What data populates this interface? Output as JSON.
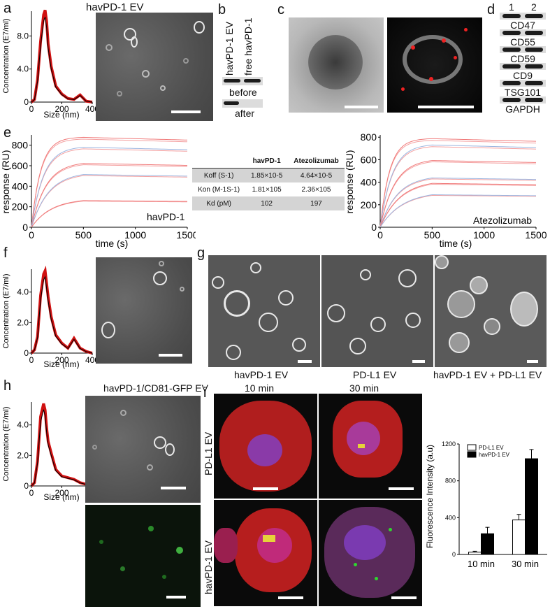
{
  "panels": {
    "a": {
      "letter": "a",
      "title": "havPD-1 EV"
    },
    "b": {
      "letter": "b",
      "lanes": [
        "havPD-1 EV",
        "free havPD-1"
      ],
      "rows": [
        "before",
        "after"
      ]
    },
    "c": {
      "letter": "c"
    },
    "d": {
      "letter": "d",
      "lanes": [
        "1",
        "2"
      ],
      "markers": [
        "CD47",
        "CD55",
        "CD59",
        "CD9",
        "TSG101",
        "GAPDH"
      ]
    },
    "e": {
      "letter": "e",
      "left_label": "havPD-1",
      "right_label": "Atezolizumab"
    },
    "f": {
      "letter": "f"
    },
    "g": {
      "letter": "g",
      "captions": [
        "havPD-1 EV",
        "PD-L1 EV",
        "havPD-1 EV + PD-L1 EV"
      ]
    },
    "h": {
      "letter": "h",
      "title": "havPD-1/CD81-GFP EV"
    },
    "i": {
      "letter": "i",
      "cols": [
        "10 min",
        "30 min"
      ],
      "rows": [
        "PD-L1 EV",
        "havPD-1 EV"
      ]
    }
  },
  "kinetics_table": {
    "headers": [
      "",
      "havPD-1",
      "Atezolizumab"
    ],
    "rows": [
      {
        "label": "Koff (S-1)",
        "a": "1.85×10-5",
        "b": "4.64×10-5"
      },
      {
        "label": "Kon (M-1S-1)",
        "a": "1.81×105",
        "b": "2.36×105"
      },
      {
        "label": "Kd (pM)",
        "a": "102",
        "b": "197"
      }
    ]
  },
  "chart_data": [
    {
      "type": "line",
      "panel": "a",
      "xlabel": "Size (nm)",
      "ylabel": "Concentration (E7/ml)",
      "xlim": [
        0,
        400
      ],
      "ylim": [
        0,
        11
      ],
      "xticks": [
        "0",
        "200",
        "400"
      ],
      "yticks": [
        "0",
        "4.0",
        "8.0"
      ],
      "x": [
        0,
        20,
        40,
        60,
        80,
        90,
        100,
        110,
        130,
        160,
        200,
        240,
        280,
        320,
        360,
        400
      ],
      "y": [
        0,
        0.3,
        2.5,
        6.8,
        9.8,
        10.3,
        9.0,
        6.5,
        4.0,
        1.8,
        0.9,
        0.4,
        0.3,
        0.8,
        0.1,
        0
      ]
    },
    {
      "type": "line",
      "panel": "e-left",
      "xlabel": "time (s)",
      "ylabel": "response (RU)",
      "xlim": [
        0,
        1500
      ],
      "ylim": [
        0,
        900
      ],
      "xticks": [
        "0",
        "500",
        "1000",
        "1500"
      ],
      "yticks": [
        "0",
        "200",
        "400",
        "600",
        "800"
      ],
      "plateaus": [
        880,
        790,
        640,
        540,
        280
      ],
      "assoc_end": 500
    },
    {
      "type": "line",
      "panel": "e-right",
      "xlabel": "time (s)",
      "ylabel": "response (RU)",
      "xlim": [
        0,
        1500
      ],
      "ylim": [
        0,
        820
      ],
      "xticks": [
        "0",
        "500",
        "1000",
        "1500"
      ],
      "yticks": [
        "0",
        "200",
        "400",
        "600",
        "800"
      ],
      "plateaus": [
        790,
        740,
        610,
        460,
        420,
        320
      ],
      "assoc_end": 500
    },
    {
      "type": "line",
      "panel": "f",
      "xlabel": "Size (nm)",
      "ylabel": "Concentration (E7/ml)",
      "xlim": [
        0,
        400
      ],
      "ylim": [
        0,
        5.5
      ],
      "xticks": [
        "0",
        "200",
        "400"
      ],
      "yticks": [
        "0",
        "2.0",
        "4.0"
      ],
      "x": [
        0,
        20,
        40,
        60,
        80,
        90,
        100,
        110,
        130,
        160,
        200,
        240,
        280,
        320,
        360,
        400
      ],
      "y": [
        0,
        0.2,
        1.0,
        3.5,
        4.8,
        5.0,
        4.2,
        3.4,
        2.2,
        1.1,
        0.6,
        0.3,
        0.9,
        0.3,
        0.1,
        0
      ]
    },
    {
      "type": "line",
      "panel": "h",
      "xlabel": "Size (nm)",
      "ylabel": "Concentration (E7/ml)",
      "xlim": [
        0,
        400
      ],
      "ylim": [
        0,
        5.5
      ],
      "xticks": [
        "0",
        "200",
        "400"
      ],
      "yticks": [
        "0",
        "2.0",
        "4.0"
      ],
      "x": [
        0,
        20,
        40,
        60,
        80,
        90,
        100,
        110,
        130,
        160,
        200,
        240,
        280,
        320,
        360,
        400
      ],
      "y": [
        0,
        0.2,
        1.5,
        4.2,
        5.0,
        4.6,
        3.5,
        2.7,
        2.0,
        1.0,
        0.6,
        0.5,
        0.4,
        0.2,
        0.1,
        0
      ]
    },
    {
      "type": "bar",
      "panel": "i",
      "ylabel": "Fluorescence Intensity (a.u)",
      "categories": [
        "10 min",
        "30 min"
      ],
      "ylim": [
        0,
        1200
      ],
      "yticks": [
        "0",
        "400",
        "800",
        "1200"
      ],
      "series": [
        {
          "name": "PD-L1 EV",
          "values": [
            25,
            375
          ],
          "errors": [
            10,
            60
          ],
          "color": "#ffffff"
        },
        {
          "name": "havPD-1 EV",
          "values": [
            225,
            1040
          ],
          "errors": [
            70,
            100
          ],
          "color": "#000000"
        }
      ]
    }
  ]
}
